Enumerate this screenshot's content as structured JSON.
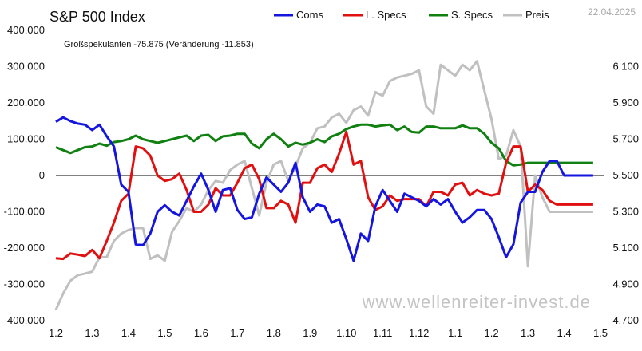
{
  "chart_data": {
    "type": "line",
    "title": "S&P 500 Index",
    "date": "22.04.2025",
    "annotation": "Großspekulanten -75.875  (Veränderung -11.853)",
    "watermark": "www.wellenreiter-invest.de",
    "x_ticks": [
      "1.2",
      "1.3",
      "1.4",
      "1.5",
      "1.6",
      "1.7",
      "1.8",
      "1.9",
      "1.10",
      "1.11",
      "1.12",
      "1.1",
      "1.2",
      "1.3",
      "1.4",
      "1.5"
    ],
    "x_range": [
      0,
      15
    ],
    "left_axis": {
      "ylim": [
        -400000,
        400000
      ],
      "ticks": [
        400000,
        300000,
        200000,
        100000,
        0,
        -100000,
        -200000,
        -300000,
        -400000
      ],
      "tick_labels": [
        "400.000",
        "300.000",
        "200.000",
        "100.000",
        "0",
        "-100.000",
        "-200.000",
        "-300.000",
        "-400.000"
      ]
    },
    "right_axis": {
      "ylim": [
        4700,
        6300
      ],
      "ticks": [
        6100,
        5900,
        5700,
        5500,
        5300,
        5100,
        4900,
        4700
      ],
      "tick_labels": [
        "6.100",
        "5.900",
        "5.700",
        "5.500",
        "5.300",
        "5.100",
        "4.900",
        "4.700"
      ]
    },
    "zero_line": true,
    "legend_position": "top",
    "series": [
      {
        "name": "Coms",
        "color": "#1515e0",
        "axis": "left",
        "x": [
          0,
          0.2,
          0.4,
          0.6,
          0.8,
          1.0,
          1.2,
          1.4,
          1.6,
          1.8,
          2.0,
          2.2,
          2.4,
          2.6,
          2.8,
          3.0,
          3.2,
          3.4,
          3.6,
          3.8,
          4.0,
          4.2,
          4.4,
          4.6,
          4.8,
          5.0,
          5.2,
          5.4,
          5.6,
          5.8,
          6.0,
          6.2,
          6.4,
          6.6,
          6.8,
          7.0,
          7.2,
          7.4,
          7.6,
          7.8,
          8.0,
          8.2,
          8.4,
          8.6,
          8.8,
          9.0,
          9.2,
          9.4,
          9.6,
          9.8,
          10.0,
          10.2,
          10.4,
          10.6,
          10.8,
          11.0,
          11.2,
          11.4,
          11.6,
          11.8,
          12.0,
          12.2,
          12.4,
          12.6,
          12.8,
          13.0,
          13.2,
          13.4,
          13.6,
          13.8,
          14.0,
          14.2,
          14.4,
          14.6,
          14.8,
          15.0
        ],
        "values": [
          148000,
          160000,
          150000,
          143000,
          140000,
          125000,
          140000,
          108000,
          80000,
          -25000,
          -45000,
          -190000,
          -192000,
          -160000,
          -100000,
          -82000,
          -100000,
          -110000,
          -70000,
          -30000,
          5000,
          -40000,
          -100000,
          -40000,
          -35000,
          -95000,
          -120000,
          -115000,
          -50000,
          -5000,
          -25000,
          -45000,
          -20000,
          35000,
          -60000,
          -100000,
          -80000,
          -85000,
          -130000,
          -120000,
          -175000,
          -235000,
          -160000,
          -180000,
          -85000,
          -40000,
          -70000,
          -100000,
          -50000,
          -60000,
          -70000,
          -85000,
          -65000,
          -80000,
          -65000,
          -100000,
          -130000,
          -115000,
          -95000,
          -95000,
          -120000,
          -170000,
          -225000,
          -190000,
          -75000,
          -45000,
          -45000,
          10000,
          40000,
          40000,
          0,
          0,
          0,
          0,
          0,
          0
        ]
      },
      {
        "name": "L. Specs",
        "color": "#e01010",
        "axis": "left",
        "values": [
          -228000,
          -230000,
          -215000,
          -218000,
          -222000,
          -205000,
          -228000,
          -180000,
          -130000,
          -70000,
          -50000,
          80000,
          75000,
          55000,
          0,
          -15000,
          -10000,
          5000,
          -40000,
          -100000,
          -100000,
          -80000,
          -35000,
          -55000,
          -55000,
          -20000,
          20000,
          30000,
          -10000,
          -90000,
          -90000,
          -70000,
          -80000,
          -130000,
          -20000,
          -20000,
          20000,
          30000,
          10000,
          60000,
          120000,
          30000,
          40000,
          -60000,
          -95000,
          -85000,
          -55000,
          -70000,
          -65000,
          -65000,
          -65000,
          -85000,
          -45000,
          -45000,
          -55000,
          -25000,
          -20000,
          -55000,
          -40000,
          -50000,
          -55000,
          -50000,
          35000,
          80000,
          80000,
          -45000,
          -25000,
          -40000,
          -70000,
          -80000,
          -80000,
          -80000,
          -80000,
          -80000,
          -80000,
          -80000
        ]
      },
      {
        "name": "S. Specs",
        "color": "#108010",
        "axis": "left",
        "values": [
          78000,
          70000,
          62000,
          70000,
          78000,
          80000,
          88000,
          82000,
          92000,
          95000,
          100000,
          110000,
          100000,
          95000,
          90000,
          95000,
          100000,
          105000,
          110000,
          95000,
          110000,
          112000,
          95000,
          108000,
          110000,
          115000,
          115000,
          88000,
          75000,
          100000,
          115000,
          100000,
          80000,
          90000,
          85000,
          90000,
          100000,
          92000,
          108000,
          115000,
          128000,
          135000,
          140000,
          140000,
          135000,
          138000,
          140000,
          125000,
          135000,
          120000,
          118000,
          135000,
          135000,
          130000,
          130000,
          130000,
          138000,
          130000,
          130000,
          115000,
          90000,
          75000,
          40000,
          28000,
          30000,
          35000,
          35000,
          35000,
          35000,
          35000,
          35000,
          35000,
          35000,
          35000,
          35000,
          35000
        ]
      },
      {
        "name": "Preis",
        "color": "#c0c0c0",
        "axis": "right",
        "values": [
          4760,
          4850,
          4920,
          4950,
          4960,
          4970,
          5050,
          5050,
          5140,
          5180,
          5200,
          5210,
          5210,
          5040,
          5060,
          5030,
          5190,
          5250,
          5320,
          5300,
          5340,
          5420,
          5470,
          5460,
          5530,
          5560,
          5580,
          5430,
          5280,
          5460,
          5560,
          5580,
          5470,
          5550,
          5650,
          5680,
          5760,
          5770,
          5820,
          5840,
          5790,
          5860,
          5880,
          5830,
          5960,
          5940,
          6020,
          6040,
          6050,
          6060,
          6080,
          5880,
          5840,
          6110,
          6080,
          6050,
          6110,
          6080,
          6130,
          5970,
          5810,
          5590,
          5610,
          5750,
          5660,
          5000,
          5500,
          5380,
          5300,
          5300,
          5300,
          5300,
          5300,
          5300,
          5300,
          5300
        ]
      }
    ]
  }
}
